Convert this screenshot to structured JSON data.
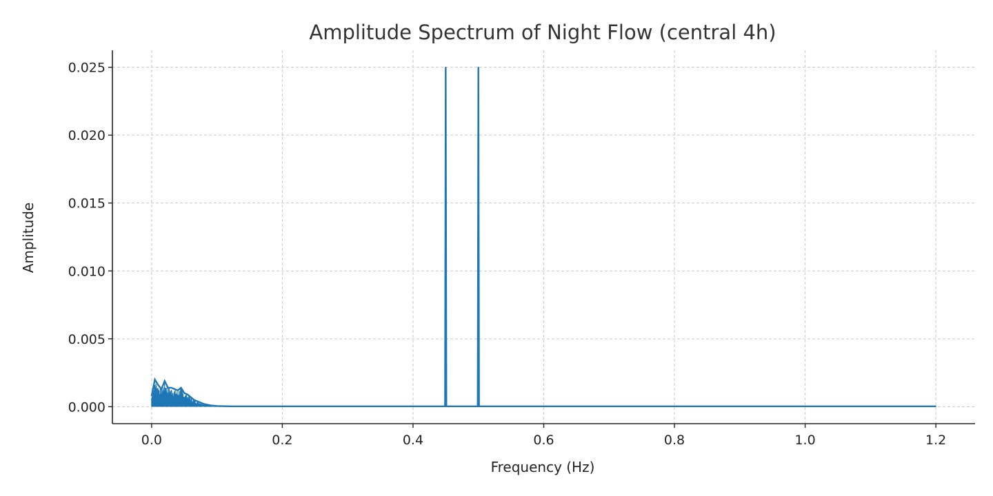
{
  "chart_data": {
    "type": "line",
    "title": "Amplitude Spectrum of Night Flow (central 4h)",
    "xlabel": "Frequency (Hz)",
    "ylabel": "Amplitude",
    "xlim": [
      -0.06,
      1.26
    ],
    "ylim": [
      -0.00125,
      0.02625
    ],
    "grid": true,
    "color": "#1f77b4",
    "x_ticks": [
      0.0,
      0.2,
      0.4,
      0.6,
      0.8,
      1.0,
      1.2
    ],
    "x_tick_labels": [
      "0.0",
      "0.2",
      "0.4",
      "0.6",
      "0.8",
      "1.0",
      "1.2"
    ],
    "y_ticks": [
      0.0,
      0.005,
      0.01,
      0.015,
      0.02,
      0.025
    ],
    "y_tick_labels": [
      "0.000",
      "0.005",
      "0.010",
      "0.015",
      "0.020",
      "0.025"
    ],
    "series": [
      {
        "x": [
          0.0,
          0.005,
          0.01,
          0.015,
          0.02,
          0.025,
          0.03,
          0.035,
          0.04,
          0.045,
          0.05,
          0.055,
          0.06,
          0.065,
          0.07,
          0.075,
          0.08,
          0.09,
          0.1,
          0.12,
          0.2,
          0.3,
          0.4,
          0.449,
          0.45,
          0.451,
          0.499,
          0.5,
          0.501,
          0.6,
          0.8,
          1.0,
          1.2
        ],
        "values": [
          0.0008,
          0.002,
          0.0016,
          0.0013,
          0.0019,
          0.0014,
          0.0014,
          0.0013,
          0.0012,
          0.0014,
          0.001,
          0.0009,
          0.0007,
          0.0005,
          0.0004,
          0.0003,
          0.0002,
          0.0001,
          5e-05,
          3e-05,
          3e-05,
          3e-05,
          3e-05,
          3e-05,
          0.025,
          3e-05,
          3e-05,
          0.025,
          3e-05,
          3e-05,
          3e-05,
          3e-05,
          3e-05
        ]
      }
    ]
  }
}
